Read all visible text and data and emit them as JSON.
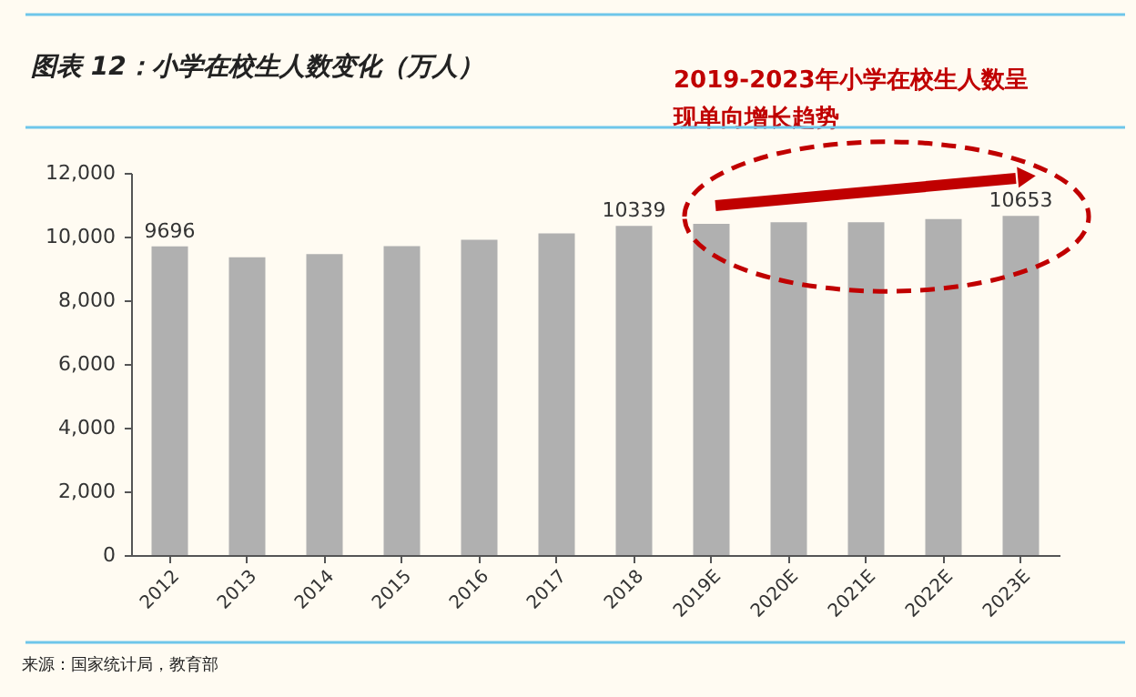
{
  "chart_data": {
    "type": "bar",
    "title": "图表 12：小学在校生人数变化（万人）",
    "categories": [
      "2012",
      "2013",
      "2014",
      "2015",
      "2016",
      "2017",
      "2018",
      "2019E",
      "2020E",
      "2021E",
      "2022E",
      "2023E"
    ],
    "values": [
      9696,
      9350,
      9450,
      9700,
      9900,
      10100,
      10339,
      10400,
      10450,
      10450,
      10550,
      10653
    ],
    "value_labels": [
      "9696",
      null,
      null,
      null,
      null,
      null,
      "10339",
      null,
      null,
      null,
      null,
      "10653"
    ],
    "color": "#b0b0b0",
    "ylim": [
      0,
      12000
    ],
    "yticks": [
      0,
      {
        "value": 2000,
        "label": "2,000"
      },
      {
        "value": 4000,
        "label": "4,000"
      },
      {
        "value": 6000,
        "label": "6,000"
      },
      {
        "value": 8000,
        "label": "8,000"
      },
      {
        "value": 10000,
        "label": "10,000"
      },
      {
        "value": 12000,
        "label": "12,000"
      }
    ],
    "grid": false,
    "annotations": [
      "2019-2023年小学在校生人数呈现单向增长趋势",
      "来源：国家统计局，教育部"
    ]
  }
}
